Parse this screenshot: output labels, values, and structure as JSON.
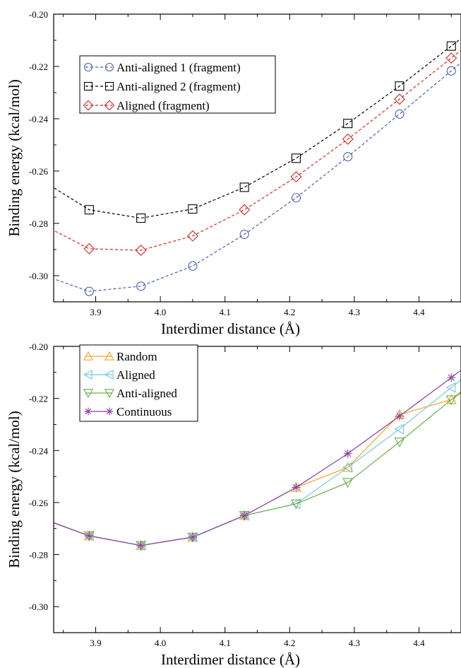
{
  "chart_data": [
    {
      "type": "line",
      "title": "",
      "xlabel": "Interdimer distance (Å)",
      "ylabel": "Binding energy (kcal/mol)",
      "xlim": [
        3.835,
        4.465
      ],
      "ylim": [
        -0.31,
        -0.2
      ],
      "xticks": [
        3.9,
        4.0,
        4.1,
        4.2,
        4.3,
        4.4
      ],
      "xtick_labels": [
        "3.9",
        "4.0",
        "4.1",
        "4.2",
        "4.3",
        "4.4"
      ],
      "yticks": [
        -0.3,
        -0.28,
        -0.26,
        -0.24,
        -0.22,
        -0.2
      ],
      "ytick_labels": [
        "-0.30",
        "-0.28",
        "-0.26",
        "-0.24",
        "-0.22",
        "-0.20"
      ],
      "grid": false,
      "legend_position": "top-left",
      "series": [
        {
          "name": "Anti-aligned 1 (fragment)",
          "color": "#4a5cb8",
          "line_style": "dashed",
          "marker": "circle",
          "x": [
            3.81,
            3.89,
            3.97,
            4.05,
            4.13,
            4.21,
            4.29,
            4.37,
            4.45,
            4.53
          ],
          "y": [
            -0.299,
            -0.306,
            -0.304,
            -0.2963,
            -0.2842,
            -0.2702,
            -0.2545,
            -0.2382,
            -0.2217,
            -0.205
          ],
          "marker_x": [
            3.89,
            3.97,
            4.05,
            4.13,
            4.21,
            4.29,
            4.37,
            4.45
          ]
        },
        {
          "name": "Anti-aligned 2 (fragment)",
          "color": "#000000",
          "line_style": "dashed",
          "marker": "square",
          "x": [
            3.81,
            3.89,
            3.97,
            4.05,
            4.13,
            4.21,
            4.29,
            4.37,
            4.45,
            4.53
          ],
          "y": [
            -0.2625,
            -0.2748,
            -0.278,
            -0.2745,
            -0.2662,
            -0.2551,
            -0.2418,
            -0.2275,
            -0.2122,
            -0.197
          ],
          "marker_x": [
            3.89,
            3.97,
            4.05,
            4.13,
            4.21,
            4.29,
            4.37,
            4.45
          ]
        },
        {
          "name": "Aligned (fragment)",
          "color": "#e0261f",
          "line_style": "dashed",
          "marker": "diamond",
          "x": [
            3.81,
            3.89,
            3.97,
            4.05,
            4.13,
            4.21,
            4.29,
            4.37,
            4.45,
            4.53
          ],
          "y": [
            -0.2795,
            -0.2897,
            -0.2903,
            -0.2848,
            -0.2748,
            -0.2622,
            -0.2478,
            -0.2325,
            -0.2168,
            -0.201
          ],
          "marker_x": [
            3.89,
            3.97,
            4.05,
            4.13,
            4.21,
            4.29,
            4.37,
            4.45
          ]
        }
      ]
    },
    {
      "type": "line",
      "title": "",
      "xlabel": "Interdimer distance (Å)",
      "ylabel": "Binding energy (kcal/mol)",
      "xlim": [
        3.835,
        4.465
      ],
      "ylim": [
        -0.31,
        -0.2
      ],
      "xticks": [
        3.9,
        4.0,
        4.1,
        4.2,
        4.3,
        4.4
      ],
      "xtick_labels": [
        "3.9",
        "4.0",
        "4.1",
        "4.2",
        "4.3",
        "4.4"
      ],
      "yticks": [
        -0.3,
        -0.28,
        -0.26,
        -0.24,
        -0.22,
        -0.2
      ],
      "ytick_labels": [
        "-0.30",
        "-0.28",
        "-0.26",
        "-0.24",
        "-0.22",
        "-0.20"
      ],
      "grid": false,
      "legend_position": "top-left",
      "series": [
        {
          "name": "Random",
          "color": "#f5a623",
          "line_style": "solid",
          "marker": "triangle-up",
          "x": [
            3.81,
            3.89,
            3.97,
            4.05,
            4.13,
            4.21,
            4.29,
            4.37,
            4.45,
            4.53
          ],
          "y": [
            -0.2655,
            -0.2728,
            -0.2765,
            -0.2733,
            -0.265,
            -0.2542,
            -0.2465,
            -0.2262,
            -0.2205,
            -0.207
          ],
          "marker_x": [
            3.89,
            3.97,
            4.05,
            4.13,
            4.21,
            4.29,
            4.37,
            4.45
          ]
        },
        {
          "name": "Aligned",
          "color": "#6ccbe0",
          "line_style": "solid",
          "marker": "triangle-left",
          "x": [
            3.81,
            3.89,
            3.97,
            4.05,
            4.13,
            4.21,
            4.29,
            4.37,
            4.45,
            4.53
          ],
          "y": [
            -0.2655,
            -0.2728,
            -0.2765,
            -0.2733,
            -0.265,
            -0.2605,
            -0.2465,
            -0.2318,
            -0.2158,
            -0.2
          ],
          "marker_x": [
            3.89,
            3.97,
            4.05,
            4.13,
            4.21,
            4.29,
            4.37,
            4.45
          ]
        },
        {
          "name": "Anti-aligned",
          "color": "#6ab04c",
          "line_style": "solid",
          "marker": "triangle-down",
          "x": [
            3.81,
            3.89,
            3.97,
            4.05,
            4.13,
            4.21,
            4.29,
            4.37,
            4.45,
            4.53
          ],
          "y": [
            -0.2655,
            -0.2728,
            -0.2765,
            -0.2733,
            -0.265,
            -0.2605,
            -0.2523,
            -0.2367,
            -0.2205,
            -0.204
          ],
          "marker_x": [
            3.89,
            3.97,
            4.05,
            4.13,
            4.21,
            4.29,
            4.37,
            4.45
          ]
        },
        {
          "name": "Continuous",
          "color": "#8a3ea8",
          "line_style": "solid",
          "marker": "asterisk",
          "x": [
            3.81,
            3.89,
            3.97,
            4.05,
            4.13,
            4.21,
            4.29,
            4.37,
            4.45,
            4.53
          ],
          "y": [
            -0.2655,
            -0.2728,
            -0.2765,
            -0.2733,
            -0.265,
            -0.2542,
            -0.2412,
            -0.2268,
            -0.212,
            -0.197
          ],
          "marker_x": [
            3.89,
            3.97,
            4.05,
            4.13,
            4.21,
            4.29,
            4.37,
            4.45
          ]
        }
      ]
    }
  ]
}
